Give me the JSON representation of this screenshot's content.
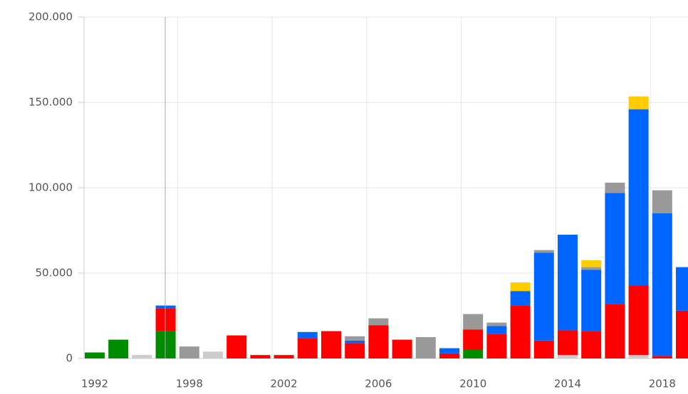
{
  "chart_data": {
    "type": "stacked_bar",
    "categories": [
      "1992",
      null,
      null,
      null,
      "1998",
      null,
      null,
      null,
      "2002",
      null,
      null,
      null,
      "2006",
      null,
      null,
      null,
      "2010",
      null,
      null,
      null,
      "2014",
      null,
      null,
      null,
      "2018",
      null
    ],
    "series": [
      {
        "color": "#cccccc",
        "values": [
          0,
          0,
          2000,
          0,
          0,
          4000,
          0,
          0,
          0,
          0,
          0,
          0,
          0,
          0,
          0,
          0,
          0,
          0,
          0,
          0,
          2000,
          0,
          0,
          2000,
          0,
          0
        ]
      },
      {
        "color": "#008c00",
        "values": [
          3500,
          11000,
          0,
          16000,
          0,
          0,
          0,
          0,
          0,
          0,
          0,
          0,
          0,
          0,
          0,
          0,
          5000,
          0,
          0,
          0,
          0,
          0,
          0,
          0,
          0,
          0
        ]
      },
      {
        "color": "#ff0000",
        "values": [
          0,
          0,
          0,
          13500,
          0,
          0,
          13500,
          2000,
          2000,
          12000,
          16000,
          9000,
          19500,
          11000,
          0,
          3000,
          12000,
          14500,
          31000,
          10500,
          14500,
          16000,
          32000,
          40500,
          1500,
          28000
        ]
      },
      {
        "color": "#0066ff",
        "values": [
          0,
          0,
          0,
          1500,
          0,
          0,
          0,
          0,
          0,
          3500,
          0,
          1500,
          0,
          0,
          0,
          3000,
          0,
          4500,
          8500,
          51500,
          56000,
          36000,
          65000,
          103500,
          83500,
          25500
        ]
      },
      {
        "color": "#999999",
        "values": [
          0,
          0,
          0,
          0,
          7000,
          0,
          0,
          0,
          0,
          0,
          0,
          2500,
          4000,
          0,
          12500,
          0,
          9000,
          2000,
          0,
          1500,
          0,
          1500,
          6000,
          0,
          13500,
          0
        ]
      },
      {
        "color": "#ffcc00",
        "values": [
          0,
          0,
          0,
          0,
          0,
          0,
          0,
          0,
          0,
          0,
          0,
          0,
          0,
          0,
          0,
          0,
          0,
          0,
          5000,
          0,
          0,
          4000,
          0,
          7500,
          0,
          0
        ]
      }
    ],
    "ylim": [
      0,
      200000
    ],
    "yticks": [
      0,
      {
        "value": 50000,
        "label": "50.000"
      },
      {
        "value": 100000,
        "label": "100.000"
      },
      {
        "value": 150000,
        "label": "150.000"
      },
      {
        "value": 200000,
        "label": "200.000"
      }
    ],
    "grid": true
  }
}
